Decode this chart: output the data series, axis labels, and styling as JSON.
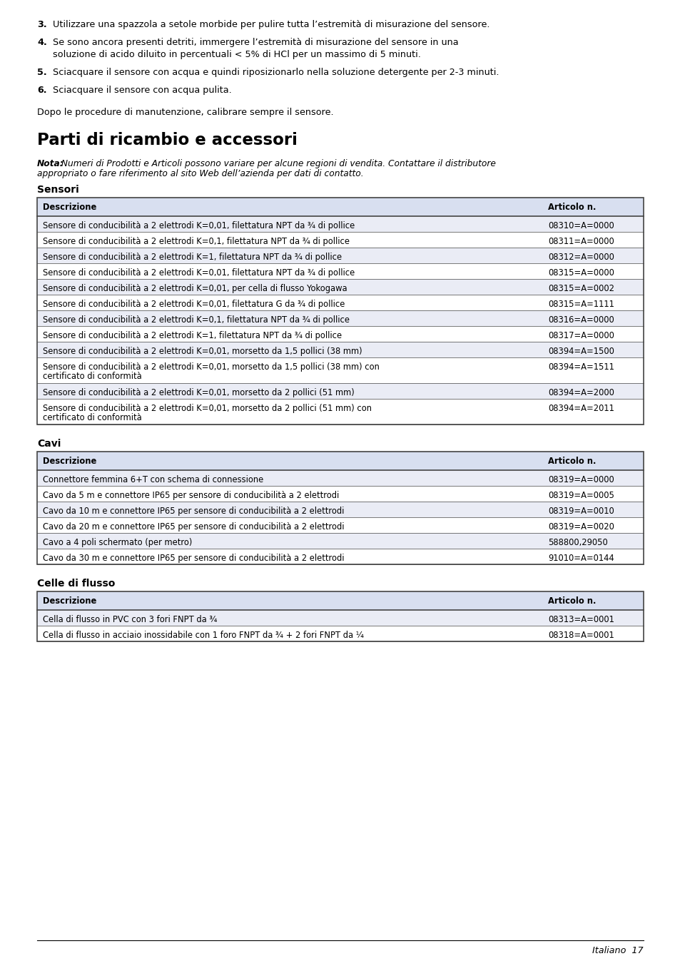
{
  "bg_color": "#ffffff",
  "intro_items": [
    {
      "num": "3.",
      "text": "Utilizzare una spazzola a setole morbide per pulire tutta l’estremità di misurazione del sensore.",
      "lines": 1
    },
    {
      "num": "4.",
      "text": "Se sono ancora presenti detriti, immergere l’estremità di misurazione del sensore in una soluzione di acido diluito in percentuali < 5% di HCl per un massimo di 5 minuti.",
      "lines": 2
    },
    {
      "num": "5.",
      "text": "Sciacquare il sensore con acqua e quindi riposizionarlo nella soluzione detergente per 2-3 minuti.",
      "lines": 1
    },
    {
      "num": "6.",
      "text": "Sciacquare il sensore con acqua pulita.",
      "lines": 1
    }
  ],
  "dopo_text": "Dopo le procedure di manutenzione, calibrare sempre il sensore.",
  "section_title": "Parti di ricambio e accessori",
  "nota_bold": "Nota:",
  "nota_rest_line1": " Numeri di Prodotti e Articoli possono variare per alcune regioni di vendita. Contattare il distributore",
  "nota_line2": "appropriato o fare riferimento al sito Web dell’azienda per dati di contatto.",
  "sensori_label": "Sensori",
  "sensori_header": [
    "Descrizione",
    "Articolo n."
  ],
  "sensori_rows": [
    [
      "Sensore di conducibilità a 2 elettrodi K=0,01, filettatura NPT da ¾ di pollice",
      "08310=A=0000",
      1
    ],
    [
      "Sensore di conducibilità a 2 elettrodi K=0,1, filettatura NPT da ¾ di pollice",
      "08311=A=0000",
      1
    ],
    [
      "Sensore di conducibilità a 2 elettrodi K=1, filettatura NPT da ¾ di pollice",
      "08312=A=0000",
      1
    ],
    [
      "Sensore di conducibilità a 2 elettrodi K=0,01, filettatura NPT da ¾ di pollice",
      "08315=A=0000",
      1
    ],
    [
      "Sensore di conducibilità a 2 elettrodi K=0,01, per cella di flusso Yokogawa",
      "08315=A=0002",
      1
    ],
    [
      "Sensore di conducibilità a 2 elettrodi K=0,01, filettatura G da ¾ di pollice",
      "08315=A=1111",
      1
    ],
    [
      "Sensore di conducibilità a 2 elettrodi K=0,1, filettatura NPT da ¾ di pollice",
      "08316=A=0000",
      1
    ],
    [
      "Sensore di conducibilità a 2 elettrodi K=1, filettatura NPT da ¾ di pollice",
      "08317=A=0000",
      1
    ],
    [
      "Sensore di conducibilità a 2 elettrodi K=0,01, morsetto da 1,5 pollici (38 mm)",
      "08394=A=1500",
      1
    ],
    [
      "Sensore di conducibilità a 2 elettrodi K=0,01, morsetto da 1,5 pollici (38 mm) con\ncertificato di conformità",
      "08394=A=1511",
      2
    ],
    [
      "Sensore di conducibilità a 2 elettrodi K=0,01, morsetto da 2 pollici (51 mm)",
      "08394=A=2000",
      1
    ],
    [
      "Sensore di conducibilità a 2 elettrodi K=0,01, morsetto da 2 pollici (51 mm) con\ncertificato di conformità",
      "08394=A=2011",
      2
    ]
  ],
  "cavi_label": "Cavi",
  "cavi_header": [
    "Descrizione",
    "Articolo n."
  ],
  "cavi_rows": [
    [
      "Connettore femmina 6+T con schema di connessione",
      "08319=A=0000",
      1
    ],
    [
      "Cavo da 5 m e connettore IP65 per sensore di conducibilità a 2 elettrodi",
      "08319=A=0005",
      1
    ],
    [
      "Cavo da 10 m e connettore IP65 per sensore di conducibilità a 2 elettrodi",
      "08319=A=0010",
      1
    ],
    [
      "Cavo da 20 m e connettore IP65 per sensore di conducibilità a 2 elettrodi",
      "08319=A=0020",
      1
    ],
    [
      "Cavo a 4 poli schermato (per metro)",
      "588800,29050",
      1
    ],
    [
      "Cavo da 30 m e connettore IP65 per sensore di conducibilità a 2 elettrodi",
      "91010=A=0144",
      1
    ]
  ],
  "celle_label": "Celle di flusso",
  "celle_header": [
    "Descrizione",
    "Articolo n."
  ],
  "celle_rows": [
    [
      "Cella di flusso in PVC con 3 fori FNPT da ¾",
      "08313=A=0001",
      1
    ],
    [
      "Cella di flusso in acciaio inossidabile con 1 foro FNPT da ¾ + 2 fori FNPT da ¼",
      "08318=A=0001",
      1
    ]
  ],
  "footer_text": "Italiano  17",
  "table_header_bg": "#d8dff0",
  "table_row_bg_odd": "#eaecf5",
  "table_row_bg_even": "#ffffff",
  "table_border_color": "#444444"
}
